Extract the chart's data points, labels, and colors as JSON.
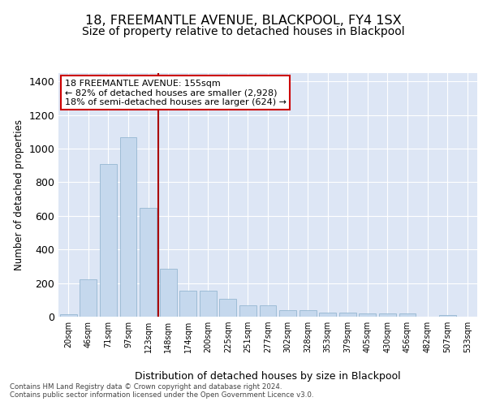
{
  "title": "18, FREEMANTLE AVENUE, BLACKPOOL, FY4 1SX",
  "subtitle": "Size of property relative to detached houses in Blackpool",
  "xlabel": "Distribution of detached houses by size in Blackpool",
  "ylabel": "Number of detached properties",
  "categories": [
    "20sqm",
    "46sqm",
    "71sqm",
    "97sqm",
    "123sqm",
    "148sqm",
    "174sqm",
    "200sqm",
    "225sqm",
    "251sqm",
    "277sqm",
    "302sqm",
    "328sqm",
    "353sqm",
    "379sqm",
    "405sqm",
    "430sqm",
    "456sqm",
    "482sqm",
    "507sqm",
    "533sqm"
  ],
  "values": [
    15,
    222,
    910,
    1070,
    650,
    285,
    155,
    155,
    105,
    70,
    70,
    38,
    38,
    25,
    25,
    18,
    18,
    18,
    0,
    10,
    0
  ],
  "bar_color": "#c5d8ed",
  "bar_edge_color": "#8ab0cc",
  "vline_color": "#aa0000",
  "annotation_text": "18 FREEMANTLE AVENUE: 155sqm\n← 82% of detached houses are smaller (2,928)\n18% of semi-detached houses are larger (624) →",
  "annotation_box_color": "#ffffff",
  "annotation_box_edge": "#cc0000",
  "bg_color": "#dde6f5",
  "footnote1": "Contains HM Land Registry data © Crown copyright and database right 2024.",
  "footnote2": "Contains public sector information licensed under the Open Government Licence v3.0.",
  "ylim": [
    0,
    1450
  ],
  "title_fontsize": 11.5,
  "subtitle_fontsize": 10
}
